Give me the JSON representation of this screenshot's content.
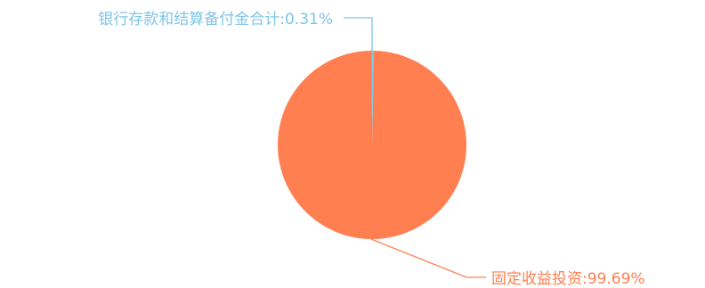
{
  "chart_data": {
    "type": "pie",
    "title": "",
    "slices": [
      {
        "label": "银行存款和结算备付金合计",
        "value": 0.31,
        "display": "银行存款和结算备付金合计:0.31%",
        "color": "#7ec4e6"
      },
      {
        "label": "固定收益投资",
        "value": 99.69,
        "display": "固定收益投资:99.69%",
        "color": "#ff7f50"
      }
    ],
    "legend": "none",
    "labels": "outside-with-leader-lines"
  }
}
